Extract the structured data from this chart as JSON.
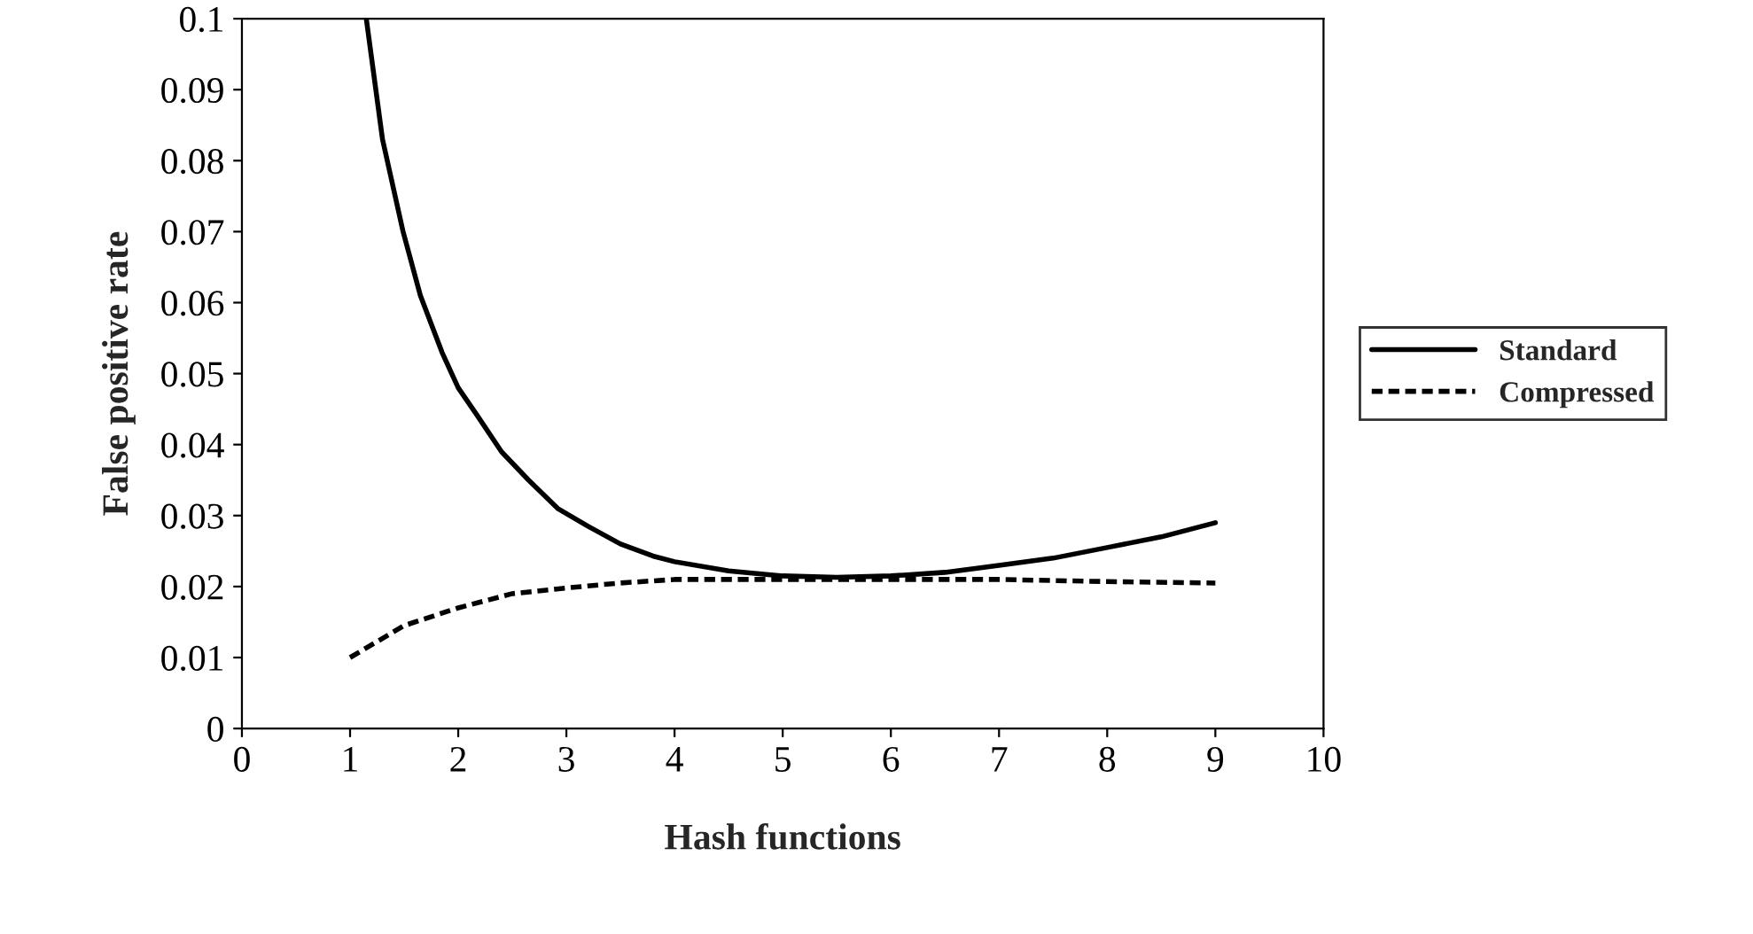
{
  "chart_data": {
    "type": "line",
    "xlabel": "Hash functions",
    "ylabel": "False positive rate",
    "series": [
      {
        "name": "Standard",
        "color": "#000000",
        "line_style": "solid",
        "x": [
          1.15,
          1.3,
          1.49,
          1.65,
          1.85,
          2.0,
          2.18,
          2.4,
          2.65,
          2.92,
          3.2,
          3.5,
          3.8,
          4.0,
          4.5,
          5.0,
          5.5,
          6.0,
          6.5,
          7.0,
          7.5,
          8.0,
          8.5,
          9.0
        ],
        "values": [
          0.1,
          0.083,
          0.07,
          0.061,
          0.053,
          0.048,
          0.044,
          0.039,
          0.035,
          0.031,
          0.0285,
          0.026,
          0.0243,
          0.0235,
          0.0222,
          0.0215,
          0.0213,
          0.0215,
          0.022,
          0.023,
          0.024,
          0.0255,
          0.027,
          0.029
        ]
      },
      {
        "name": "Compressed",
        "color": "#000000",
        "line_style": "dashed",
        "x": [
          1,
          1.5,
          2,
          2.5,
          3,
          3.5,
          4,
          5,
          6,
          7,
          8,
          9
        ],
        "values": [
          0.01,
          0.0145,
          0.017,
          0.019,
          0.0198,
          0.0205,
          0.021,
          0.021,
          0.021,
          0.021,
          0.0207,
          0.0205
        ]
      }
    ],
    "xlim": [
      0,
      10
    ],
    "xticks": [
      0,
      1,
      2,
      3,
      4,
      5,
      6,
      7,
      8,
      9,
      10
    ],
    "ylim": [
      0,
      0.1
    ],
    "yticks": [
      0,
      0.01,
      0.02,
      0.03,
      0.04,
      0.05,
      0.06,
      0.07,
      0.08,
      0.09,
      0.1
    ],
    "grid": false,
    "legend": "right",
    "marker": "none"
  }
}
